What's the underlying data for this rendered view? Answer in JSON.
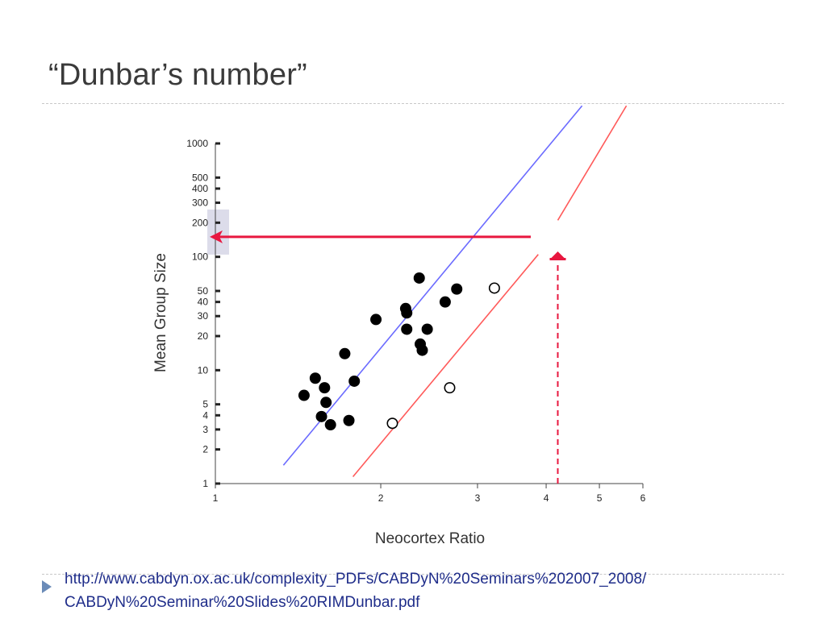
{
  "slide": {
    "title": "“Dunbar’s number”",
    "link_line1": "http://www.cabdyn.ox.ac.uk/complexity_PDFs/CABDyN%20Seminars%202007_2008/",
    "link_line2": "CABDyN%20Seminar%20Slides%20RIMDunbar.pdf"
  },
  "chart_data": {
    "type": "scatter",
    "xlabel": "Neocortex Ratio",
    "ylabel": "Mean Group Size",
    "xscale": "log",
    "yscale": "log",
    "xlim": [
      1,
      6
    ],
    "ylim": [
      1,
      1000
    ],
    "xticks": [
      1,
      2,
      3,
      4,
      5,
      6
    ],
    "yticks": [
      1,
      2,
      3,
      4,
      5,
      10,
      20,
      30,
      40,
      50,
      100,
      200,
      300,
      400,
      500,
      1000
    ],
    "grid": false,
    "series": [
      {
        "marker": "filled-circle",
        "color": "#000000",
        "points": [
          [
            1.45,
            6
          ],
          [
            1.52,
            8.5
          ],
          [
            1.58,
            7
          ],
          [
            1.59,
            5.2
          ],
          [
            1.56,
            3.9
          ],
          [
            1.62,
            3.3
          ],
          [
            1.72,
            14
          ],
          [
            1.75,
            3.6
          ],
          [
            1.79,
            8
          ],
          [
            1.96,
            28
          ],
          [
            2.22,
            35
          ],
          [
            2.23,
            32
          ],
          [
            2.23,
            23
          ],
          [
            2.35,
            65
          ],
          [
            2.36,
            17
          ],
          [
            2.38,
            15
          ],
          [
            2.43,
            23
          ],
          [
            2.62,
            40
          ],
          [
            2.75,
            52
          ]
        ]
      },
      {
        "marker": "open-circle",
        "color": "#000000",
        "points": [
          [
            2.1,
            3.4
          ],
          [
            2.67,
            7
          ],
          [
            3.22,
            53
          ]
        ]
      }
    ],
    "lines": [
      {
        "color": "#6b6bff",
        "from": [
          1.33,
          1.45
        ],
        "to": [
          4.65,
          2150
        ]
      },
      {
        "color": "#ff5a5a",
        "from": [
          1.78,
          1.15
        ],
        "to": [
          3.87,
          105
        ]
      },
      {
        "color": "#ff5a5a",
        "from": [
          4.2,
          210
        ],
        "to": [
          5.6,
          2150
        ]
      }
    ],
    "annotations": {
      "prediction_x": 4.2,
      "prediction_y": 150,
      "arrow_color": "#e8173f",
      "highlight_color": "#dcdcea"
    }
  }
}
